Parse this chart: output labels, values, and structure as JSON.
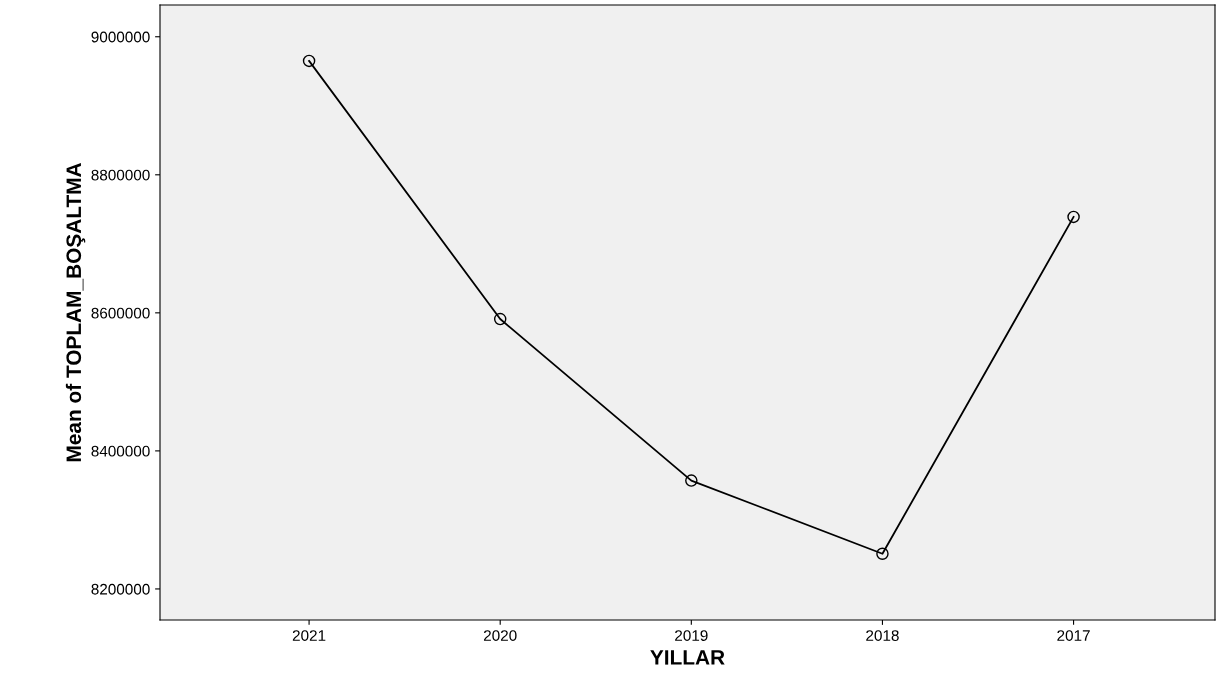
{
  "chart_data": {
    "type": "line",
    "xlabel": "YILLAR",
    "ylabel": "Mean of TOPLAM_BOŞALTMA",
    "categories": [
      "2021",
      "2020",
      "2019",
      "2018",
      "2017"
    ],
    "series": [
      {
        "color": "#000000",
        "values": [
          8965000,
          8591000,
          8357000,
          8251000,
          8739000
        ]
      }
    ],
    "ylim": [
      8155000,
      9046000
    ],
    "yticks": [
      8200000,
      8400000,
      8600000,
      8800000,
      9000000
    ],
    "grid": false,
    "marker": "circle",
    "line_style": "solid"
  }
}
